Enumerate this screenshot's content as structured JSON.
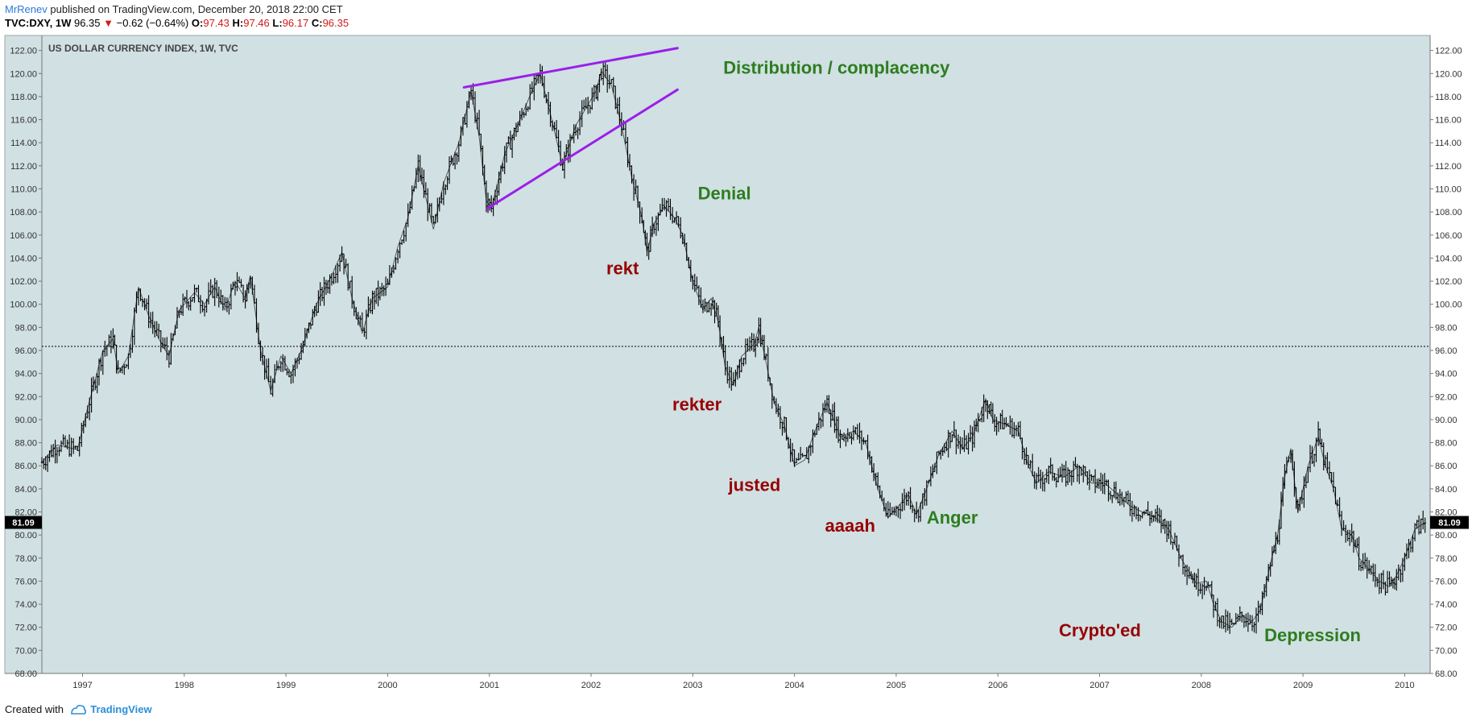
{
  "header": {
    "author": "MrRenev",
    "published_text": "published on TradingView.com, December 20, 2018 22:00 CET",
    "symbol": "TVC:DXY, 1W",
    "last": "96.35",
    "change_arrow": "▼",
    "change": "−0.62 (−0.64%)",
    "o_label": "O:",
    "o_value": "97.43",
    "h_label": "H:",
    "h_value": "97.46",
    "l_label": "L:",
    "l_value": "96.17",
    "c_label": "C:",
    "c_value": "96.35"
  },
  "footer": {
    "created_with": "Created with",
    "brand": "TradingView"
  },
  "colors": {
    "plot_bg": "#d0e0e3",
    "price_line": "#000000",
    "wedge": "#9b1fe8",
    "green_annotation": "#2e7d1f",
    "red_annotation": "#990000",
    "down_arrow": "#d21a1a",
    "price_label_bg": "#000000"
  },
  "chart_data": {
    "type": "line",
    "title": "US DOLLAR CURRENCY INDEX, 1W, TVC",
    "x_unit": "year",
    "xlim": [
      1996.6,
      2010.25
    ],
    "ylim": [
      68,
      123.3
    ],
    "x_ticks": [
      "1997",
      "1998",
      "1999",
      "2000",
      "2001",
      "2002",
      "2003",
      "2004",
      "2005",
      "2006",
      "2007",
      "2008",
      "2009",
      "2010"
    ],
    "y_ticks": [
      "68.00",
      "70.00",
      "72.00",
      "74.00",
      "76.00",
      "78.00",
      "80.00",
      "82.00",
      "84.00",
      "86.00",
      "88.00",
      "90.00",
      "92.00",
      "94.00",
      "96.00",
      "98.00",
      "100.00",
      "102.00",
      "104.00",
      "106.00",
      "108.00",
      "110.00",
      "112.00",
      "114.00",
      "116.00",
      "118.00",
      "120.00",
      "122.00"
    ],
    "grid": false,
    "current_price_label": "81.09",
    "current_price": 81.09,
    "reference_line": 96.35,
    "series": [
      {
        "points": [
          [
            1996.6,
            86.3
          ],
          [
            1996.75,
            87.8
          ],
          [
            1996.95,
            87.4
          ],
          [
            1997.05,
            91.0
          ],
          [
            1997.2,
            96.0
          ],
          [
            1997.3,
            97.0
          ],
          [
            1997.35,
            94.0
          ],
          [
            1997.45,
            95.5
          ],
          [
            1997.55,
            101.5
          ],
          [
            1997.65,
            99.0
          ],
          [
            1997.75,
            97.0
          ],
          [
            1997.85,
            95.5
          ],
          [
            1997.95,
            99.5
          ],
          [
            1998.1,
            101.0
          ],
          [
            1998.2,
            100.0
          ],
          [
            1998.3,
            101.5
          ],
          [
            1998.4,
            99.5
          ],
          [
            1998.5,
            102.0
          ],
          [
            1998.6,
            100.5
          ],
          [
            1998.65,
            102.5
          ],
          [
            1998.75,
            96.0
          ],
          [
            1998.85,
            92.5
          ],
          [
            1998.95,
            95.5
          ],
          [
            1999.05,
            94.0
          ],
          [
            1999.15,
            96.0
          ],
          [
            1999.3,
            100.0
          ],
          [
            1999.45,
            102.5
          ],
          [
            1999.55,
            104.5
          ],
          [
            1999.65,
            100.5
          ],
          [
            1999.75,
            97.5
          ],
          [
            1999.85,
            100.5
          ],
          [
            2000.0,
            101.5
          ],
          [
            2000.1,
            105.0
          ],
          [
            2000.2,
            107.5
          ],
          [
            2000.3,
            112.0
          ],
          [
            2000.45,
            106.5
          ],
          [
            2000.55,
            110.5
          ],
          [
            2000.7,
            114.0
          ],
          [
            2000.82,
            118.5
          ],
          [
            2000.9,
            114.5
          ],
          [
            2000.97,
            109.0
          ],
          [
            2001.02,
            108.3
          ],
          [
            2001.15,
            113.0
          ],
          [
            2001.3,
            116.0
          ],
          [
            2001.42,
            118.5
          ],
          [
            2001.5,
            120.0
          ],
          [
            2001.6,
            116.5
          ],
          [
            2001.72,
            112.0
          ],
          [
            2001.85,
            115.5
          ],
          [
            2001.95,
            117.0
          ],
          [
            2002.05,
            118.5
          ],
          [
            2002.1,
            120.2
          ],
          [
            2002.2,
            119.0
          ],
          [
            2002.3,
            115.5
          ],
          [
            2002.4,
            111.0
          ],
          [
            2002.5,
            107.5
          ],
          [
            2002.55,
            104.5
          ],
          [
            2002.62,
            107.0
          ],
          [
            2002.72,
            108.5
          ],
          [
            2002.82,
            107.5
          ],
          [
            2002.9,
            106.0
          ],
          [
            2003.0,
            102.0
          ],
          [
            2003.1,
            99.5
          ],
          [
            2003.18,
            100.5
          ],
          [
            2003.25,
            98.5
          ],
          [
            2003.32,
            94.5
          ],
          [
            2003.4,
            93.0
          ],
          [
            2003.48,
            95.5
          ],
          [
            2003.6,
            96.5
          ],
          [
            2003.65,
            98.0
          ],
          [
            2003.72,
            95.0
          ],
          [
            2003.8,
            91.5
          ],
          [
            2003.9,
            89.5
          ],
          [
            2004.0,
            86.0
          ],
          [
            2004.1,
            86.5
          ],
          [
            2004.2,
            89.0
          ],
          [
            2004.32,
            91.5
          ],
          [
            2004.45,
            88.5
          ],
          [
            2004.58,
            89.0
          ],
          [
            2004.7,
            88.0
          ],
          [
            2004.82,
            84.0
          ],
          [
            2004.92,
            81.5
          ],
          [
            2005.02,
            82.5
          ],
          [
            2005.12,
            83.5
          ],
          [
            2005.2,
            81.8
          ],
          [
            2005.3,
            84.0
          ],
          [
            2005.42,
            87.0
          ],
          [
            2005.55,
            89.0
          ],
          [
            2005.65,
            87.5
          ],
          [
            2005.75,
            88.5
          ],
          [
            2005.88,
            91.8
          ],
          [
            2005.95,
            90.0
          ],
          [
            2006.1,
            89.5
          ],
          [
            2006.2,
            89.0
          ],
          [
            2006.3,
            86.0
          ],
          [
            2006.38,
            84.5
          ],
          [
            2006.5,
            85.5
          ],
          [
            2006.65,
            85.0
          ],
          [
            2006.8,
            86.0
          ],
          [
            2006.92,
            84.5
          ],
          [
            2007.05,
            84.5
          ],
          [
            2007.18,
            83.5
          ],
          [
            2007.3,
            82.5
          ],
          [
            2007.42,
            82.0
          ],
          [
            2007.55,
            81.5
          ],
          [
            2007.68,
            80.5
          ],
          [
            2007.8,
            78.0
          ],
          [
            2007.9,
            76.5
          ],
          [
            2007.95,
            75.8
          ],
          [
            2008.05,
            76.0
          ],
          [
            2008.12,
            74.0
          ],
          [
            2008.2,
            72.5
          ],
          [
            2008.3,
            72.0
          ],
          [
            2008.4,
            73.0
          ],
          [
            2008.5,
            72.5
          ],
          [
            2008.58,
            73.5
          ],
          [
            2008.68,
            77.5
          ],
          [
            2008.75,
            80.0
          ],
          [
            2008.82,
            85.0
          ],
          [
            2008.88,
            87.5
          ],
          [
            2008.95,
            82.0
          ],
          [
            2009.05,
            86.0
          ],
          [
            2009.15,
            88.5
          ],
          [
            2009.22,
            86.0
          ],
          [
            2009.3,
            84.0
          ],
          [
            2009.38,
            80.5
          ],
          [
            2009.48,
            80.0
          ],
          [
            2009.55,
            78.0
          ],
          [
            2009.65,
            77.0
          ],
          [
            2009.75,
            76.0
          ],
          [
            2009.85,
            75.5
          ],
          [
            2009.92,
            76.5
          ],
          [
            2010.0,
            78.0
          ],
          [
            2010.1,
            80.5
          ],
          [
            2010.2,
            81.09
          ]
        ]
      }
    ],
    "wedge_lines": [
      [
        [
          2000.75,
          118.8
        ],
        [
          2002.85,
          122.2
        ]
      ],
      [
        [
          2000.98,
          108.3
        ],
        [
          2002.85,
          118.6
        ]
      ]
    ],
    "annotations": [
      {
        "text": "Distribution / complacency",
        "x": 2003.3,
        "y": 120.0,
        "color": "green"
      },
      {
        "text": "Denial",
        "x": 2003.05,
        "y": 109.1,
        "color": "green"
      },
      {
        "text": "rekt",
        "x": 2002.15,
        "y": 102.6,
        "color": "red"
      },
      {
        "text": "rekter",
        "x": 2002.8,
        "y": 90.8,
        "color": "red"
      },
      {
        "text": "justed",
        "x": 2003.35,
        "y": 83.8,
        "color": "red"
      },
      {
        "text": "aaaah",
        "x": 2004.3,
        "y": 80.3,
        "color": "red"
      },
      {
        "text": "Anger",
        "x": 2005.3,
        "y": 81.0,
        "color": "green"
      },
      {
        "text": "Crypto'ed",
        "x": 2006.6,
        "y": 71.2,
        "color": "red"
      },
      {
        "text": "Depression",
        "x": 2008.62,
        "y": 70.8,
        "color": "green"
      }
    ]
  }
}
